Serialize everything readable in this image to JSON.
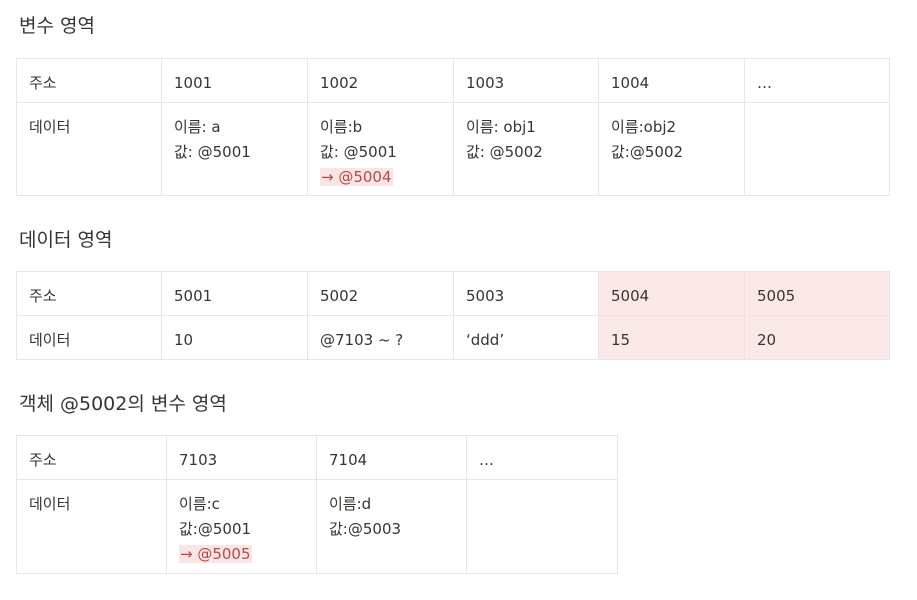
{
  "sections": [
    {
      "title": "변수 영역",
      "header_label": "주소",
      "data_label": "데이터",
      "addresses": [
        "1001",
        "1002",
        "1003",
        "1004",
        "…"
      ],
      "cells": [
        [
          "이름: a",
          "값: @5001"
        ],
        [
          "이름:b",
          "값: @5001",
          "→ @5004"
        ],
        [
          "이름: obj1",
          "값: @5002"
        ],
        [
          "이름:obj2",
          "값:@5002"
        ],
        []
      ]
    },
    {
      "title": "데이터 영역",
      "header_label": "주소",
      "data_label": "데이터",
      "addresses": [
        "5001",
        "5002",
        "5003",
        "5004",
        "5005"
      ],
      "values": [
        "10",
        "@7103 ~ ?",
        "‘ddd’",
        "15",
        "20"
      ],
      "highlight_color": "#fce8e8"
    },
    {
      "title": "객체 @5002의 변수 영역",
      "header_label": "주소",
      "data_label": "데이터",
      "addresses": [
        "7103",
        "7104",
        "…"
      ],
      "cells": [
        [
          "이름:c",
          "값:@5001",
          "→ @5005"
        ],
        [
          "이름:d",
          "값:@5003"
        ],
        []
      ]
    }
  ],
  "colors": {
    "text": "#37352f",
    "border": "#e6e6e3",
    "highlight": "#fce8e8",
    "changed_value_bg": "#fbe4e4"
  }
}
